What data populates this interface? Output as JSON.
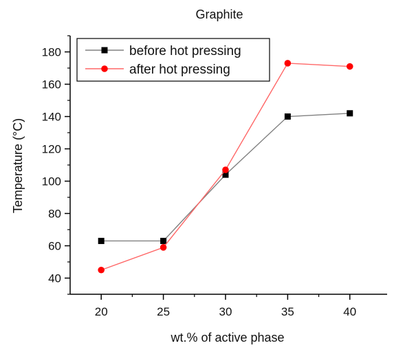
{
  "chart_data": {
    "type": "line",
    "title": "Graphite",
    "xlabel": "wt.% of active phase",
    "ylabel": "Temperature (°C)",
    "x": [
      20,
      25,
      30,
      35,
      40
    ],
    "xlim": [
      17.5,
      43
    ],
    "ylim": [
      30,
      190
    ],
    "xticks": [
      20,
      25,
      30,
      35,
      40
    ],
    "yticks": [
      40,
      60,
      80,
      100,
      120,
      140,
      160,
      180
    ],
    "grid": false,
    "legend_position": "top-left",
    "series": [
      {
        "name": "before hot pressing",
        "values": [
          63,
          63,
          104,
          140,
          142
        ],
        "color": "#000000",
        "line_color": "#808080",
        "marker": "square"
      },
      {
        "name": "after hot pressing",
        "values": [
          45,
          59,
          107,
          173,
          171
        ],
        "color": "#ff0000",
        "line_color": "#ff6666",
        "marker": "circle"
      }
    ]
  }
}
